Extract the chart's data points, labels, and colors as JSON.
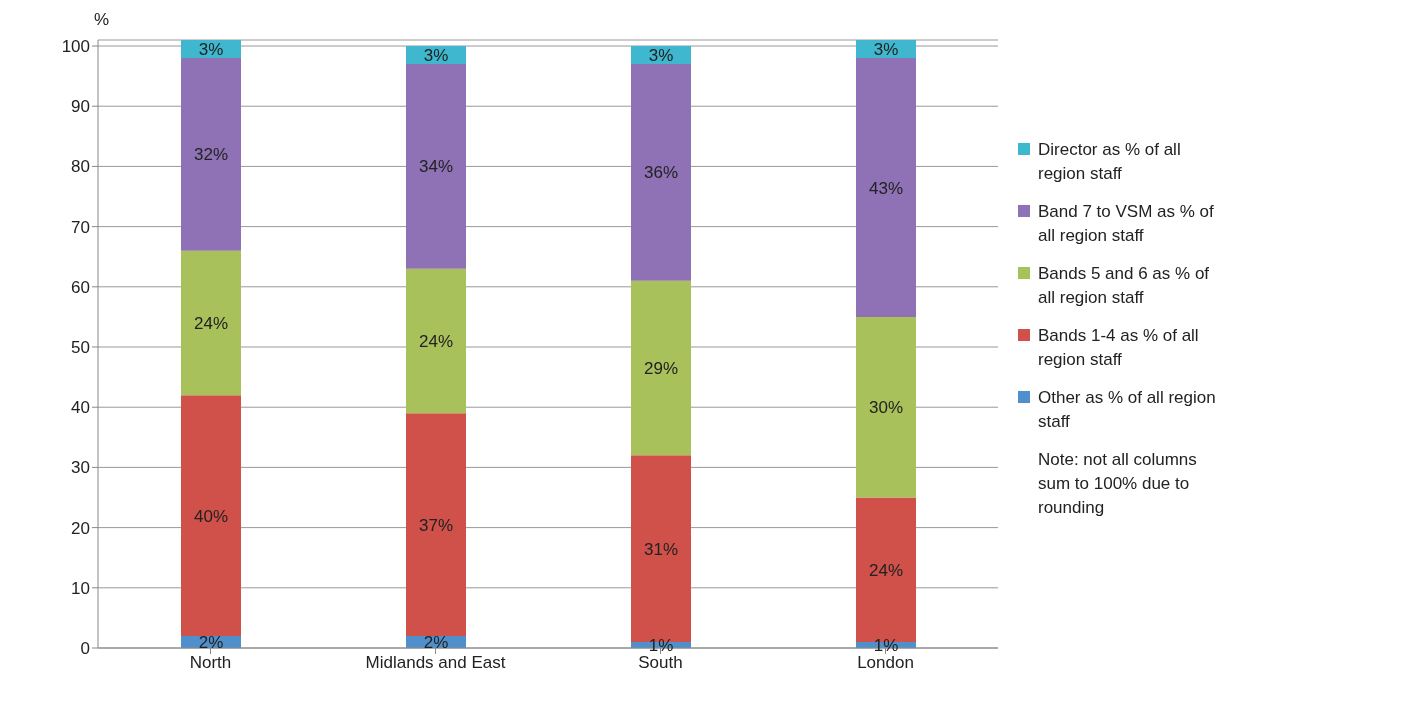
{
  "chart_data": {
    "type": "bar",
    "stacked": true,
    "ylabel": "%",
    "categories": [
      "North",
      "Midlands and East",
      "South",
      "London"
    ],
    "series": [
      {
        "name": "Other as % of all region staff",
        "color": "#4f8fcc",
        "values": [
          2,
          2,
          1,
          1
        ],
        "value_labels": [
          "2%",
          "2%",
          "1%",
          "1%"
        ]
      },
      {
        "name": "Bands 1-4 as % of all region staff",
        "color": "#d0504a",
        "values": [
          40,
          37,
          31,
          24
        ],
        "value_labels": [
          "40%",
          "37%",
          "31%",
          "24%"
        ]
      },
      {
        "name": "Bands 5 and 6 as % of all region staff",
        "color": "#a9c15a",
        "values": [
          24,
          24,
          29,
          30
        ],
        "value_labels": [
          "24%",
          "24%",
          "29%",
          "30%"
        ]
      },
      {
        "name": "Band 7 to VSM as % of all region staff",
        "color": "#8f72b5",
        "values": [
          32,
          34,
          36,
          43
        ],
        "value_labels": [
          "32%",
          "34%",
          "36%",
          "43%"
        ]
      },
      {
        "name": "Director as % of all region staff",
        "color": "#3fb7cf",
        "values": [
          3,
          3,
          3,
          3
        ],
        "value_labels": [
          "3%",
          "3%",
          "3%",
          "3%"
        ]
      }
    ],
    "ylim": [
      0,
      101
    ],
    "yticks": [
      0,
      10,
      20,
      30,
      40,
      50,
      60,
      70,
      80,
      90,
      100
    ],
    "grid": "y",
    "legend": "right",
    "annotations": [
      "Note: not all columns sum to 100% due to rounding"
    ]
  }
}
